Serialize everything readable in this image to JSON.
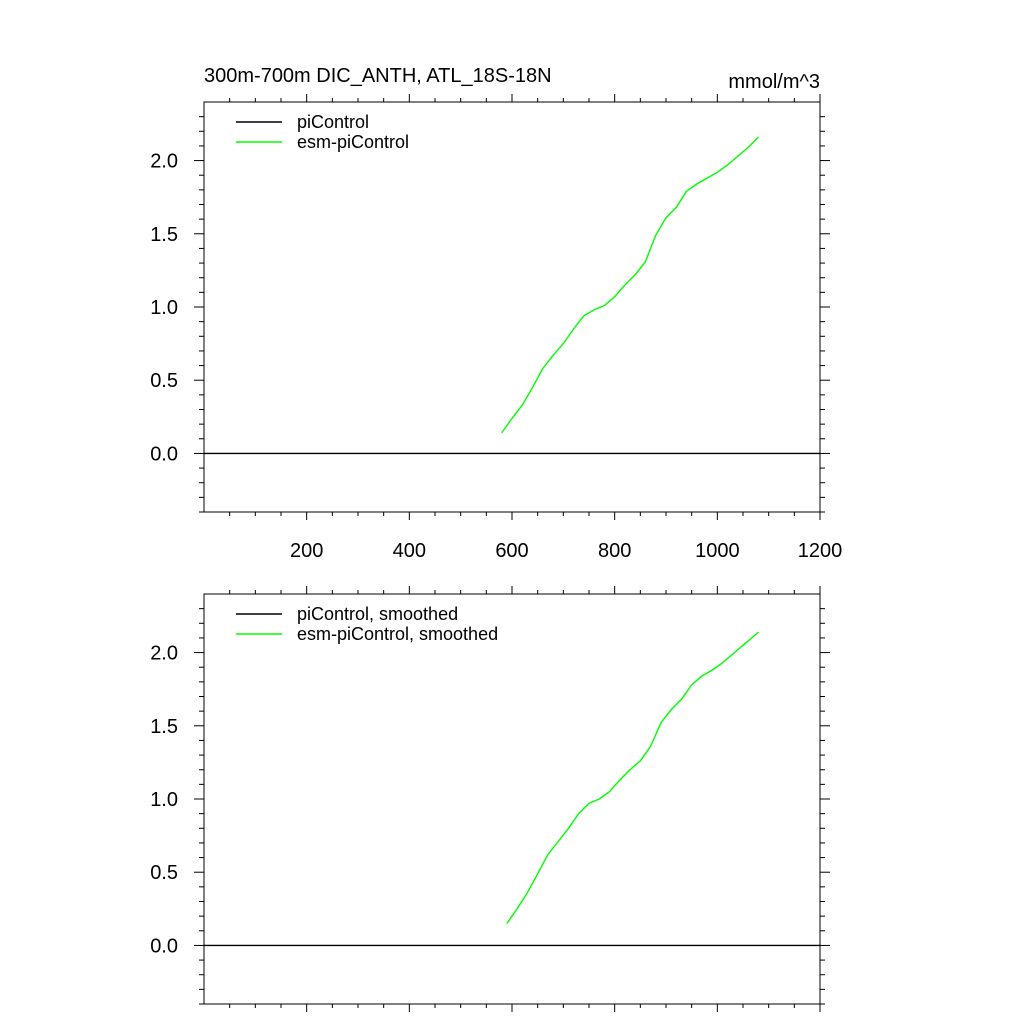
{
  "chart_data": [
    {
      "type": "line",
      "title": "300m-700m DIC_ANTH, ATL_18S-18N",
      "units": "mmol/m^3",
      "xlim": [
        0,
        1200
      ],
      "ylim": [
        -0.4,
        2.4
      ],
      "xticks": [
        200,
        400,
        600,
        800,
        1000,
        1200
      ],
      "xtick_labels": [
        "200",
        "400",
        "600",
        "800",
        "1000",
        "1200"
      ],
      "yticks": [
        0.0,
        0.5,
        1.0,
        1.5,
        2.0
      ],
      "ytick_labels": [
        "0.0",
        "0.5",
        "1.0",
        "1.5",
        "2.0"
      ],
      "legend_position": "top-left",
      "series": [
        {
          "name": "piControl",
          "color": "#000000",
          "x": [
            0,
            1200
          ],
          "y": [
            0.0,
            0.0
          ]
        },
        {
          "name": "esm-piControl",
          "color": "#00ff00",
          "x": [
            580,
            600,
            620,
            640,
            660,
            680,
            700,
            720,
            740,
            760,
            780,
            800,
            820,
            840,
            860,
            880,
            900,
            920,
            940,
            960,
            980,
            1000,
            1020,
            1040,
            1060,
            1080
          ],
          "y": [
            0.14,
            0.24,
            0.33,
            0.45,
            0.58,
            0.67,
            0.75,
            0.85,
            0.94,
            0.98,
            1.01,
            1.07,
            1.15,
            1.22,
            1.31,
            1.49,
            1.61,
            1.68,
            1.79,
            1.84,
            1.88,
            1.92,
            1.97,
            2.03,
            2.09,
            2.16
          ]
        }
      ]
    },
    {
      "type": "line",
      "title": "",
      "units": "",
      "xlim": [
        0,
        1200
      ],
      "ylim": [
        -0.4,
        2.4
      ],
      "xticks": [
        200,
        400,
        600,
        800,
        1000,
        1200
      ],
      "xtick_labels": [],
      "yticks": [
        0.0,
        0.5,
        1.0,
        1.5,
        2.0
      ],
      "ytick_labels": [
        "0.0",
        "0.5",
        "1.0",
        "1.5",
        "2.0"
      ],
      "legend_position": "top-left",
      "series": [
        {
          "name": "piControl, smoothed",
          "color": "#000000",
          "x": [
            0,
            1200
          ],
          "y": [
            0.0,
            0.0
          ]
        },
        {
          "name": "esm-piControl, smoothed",
          "color": "#00ff00",
          "x": [
            590,
            610,
            630,
            650,
            670,
            690,
            710,
            730,
            750,
            770,
            790,
            810,
            830,
            850,
            870,
            890,
            910,
            930,
            950,
            970,
            990,
            1010,
            1030,
            1050,
            1070,
            1080
          ],
          "y": [
            0.15,
            0.25,
            0.36,
            0.49,
            0.62,
            0.71,
            0.8,
            0.9,
            0.97,
            1.0,
            1.05,
            1.13,
            1.2,
            1.26,
            1.36,
            1.52,
            1.61,
            1.68,
            1.78,
            1.84,
            1.88,
            1.93,
            1.99,
            2.05,
            2.11,
            2.14
          ]
        }
      ]
    }
  ]
}
